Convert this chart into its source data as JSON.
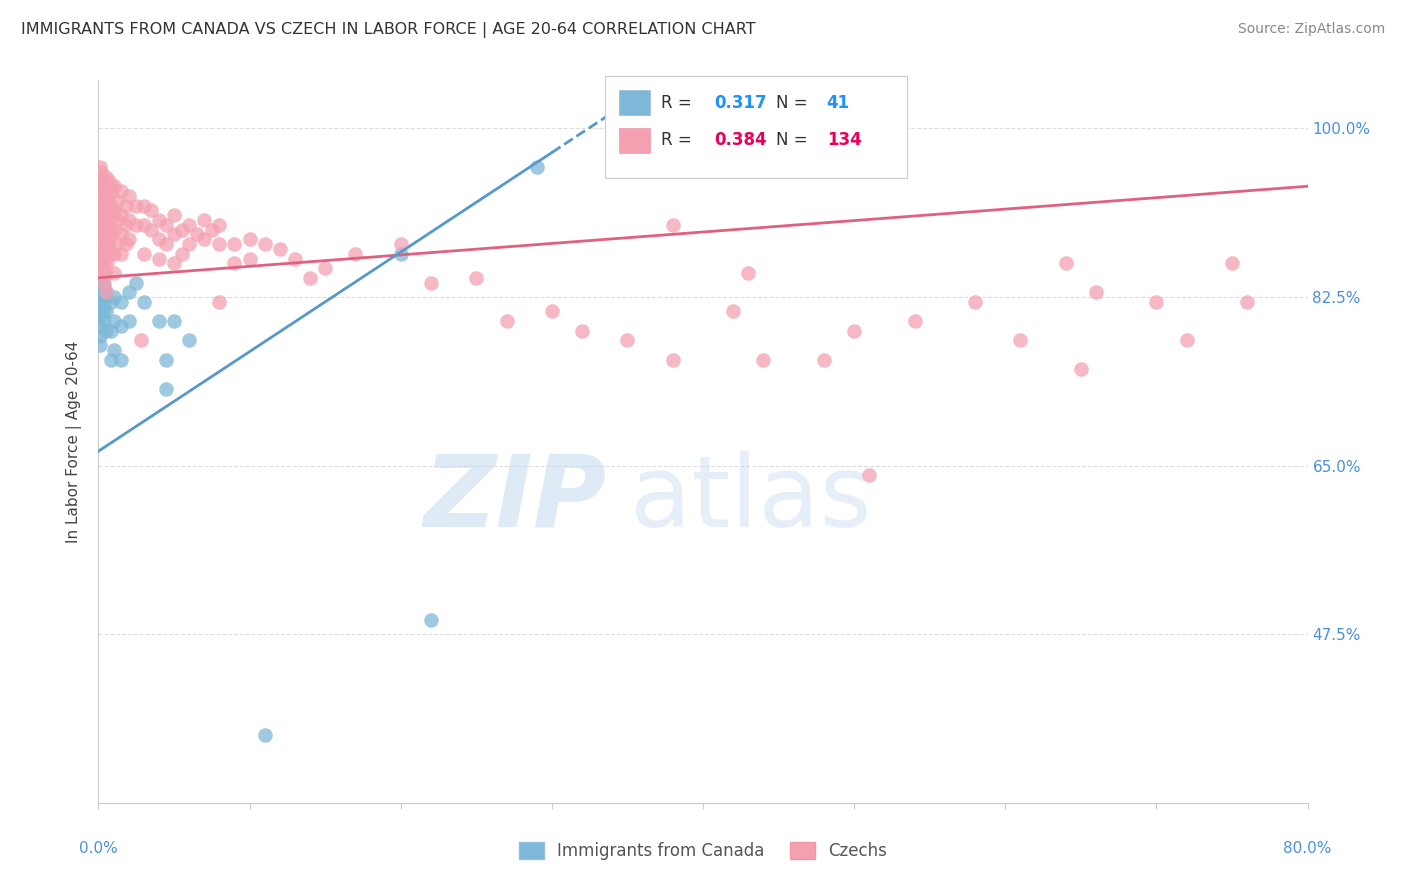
{
  "title": "IMMIGRANTS FROM CANADA VS CZECH IN LABOR FORCE | AGE 20-64 CORRELATION CHART",
  "source": "Source: ZipAtlas.com",
  "ylabel": "In Labor Force | Age 20-64",
  "ytick_labels": [
    "100.0%",
    "82.5%",
    "65.0%",
    "47.5%"
  ],
  "ytick_values": [
    1.0,
    0.825,
    0.65,
    0.475
  ],
  "xmin": 0.0,
  "xmax": 0.8,
  "ymin": 0.3,
  "ymax": 1.05,
  "canada_color": "#7EB8D8",
  "czech_color": "#F4A0B0",
  "canada_R": 0.317,
  "canada_N": 41,
  "czech_R": 0.384,
  "czech_N": 134,
  "watermark_zip": "ZIP",
  "watermark_atlas": "atlas",
  "background_color": "#FFFFFF",
  "grid_color": "#DDDDDD",
  "canada_line_color": "#5599CC",
  "czech_line_color": "#E06080",
  "canada_scatter": [
    [
      0.001,
      0.835
    ],
    [
      0.001,
      0.825
    ],
    [
      0.001,
      0.815
    ],
    [
      0.001,
      0.805
    ],
    [
      0.001,
      0.795
    ],
    [
      0.001,
      0.785
    ],
    [
      0.001,
      0.775
    ],
    [
      0.002,
      0.83
    ],
    [
      0.002,
      0.82
    ],
    [
      0.002,
      0.81
    ],
    [
      0.003,
      0.84
    ],
    [
      0.003,
      0.825
    ],
    [
      0.003,
      0.81
    ],
    [
      0.004,
      0.835
    ],
    [
      0.004,
      0.82
    ],
    [
      0.004,
      0.8
    ],
    [
      0.005,
      0.83
    ],
    [
      0.005,
      0.81
    ],
    [
      0.005,
      0.79
    ],
    [
      0.008,
      0.82
    ],
    [
      0.008,
      0.79
    ],
    [
      0.008,
      0.76
    ],
    [
      0.01,
      0.825
    ],
    [
      0.01,
      0.8
    ],
    [
      0.01,
      0.77
    ],
    [
      0.015,
      0.82
    ],
    [
      0.015,
      0.795
    ],
    [
      0.015,
      0.76
    ],
    [
      0.02,
      0.83
    ],
    [
      0.02,
      0.8
    ],
    [
      0.025,
      0.84
    ],
    [
      0.03,
      0.82
    ],
    [
      0.04,
      0.8
    ],
    [
      0.045,
      0.76
    ],
    [
      0.045,
      0.73
    ],
    [
      0.05,
      0.8
    ],
    [
      0.06,
      0.78
    ],
    [
      0.11,
      0.37
    ],
    [
      0.2,
      0.87
    ],
    [
      0.22,
      0.49
    ],
    [
      0.29,
      0.96
    ]
  ],
  "czech_scatter": [
    [
      0.001,
      0.96
    ],
    [
      0.001,
      0.95
    ],
    [
      0.001,
      0.94
    ],
    [
      0.001,
      0.93
    ],
    [
      0.001,
      0.92
    ],
    [
      0.001,
      0.91
    ],
    [
      0.001,
      0.9
    ],
    [
      0.001,
      0.89
    ],
    [
      0.001,
      0.88
    ],
    [
      0.001,
      0.87
    ],
    [
      0.001,
      0.86
    ],
    [
      0.001,
      0.855
    ],
    [
      0.002,
      0.955
    ],
    [
      0.002,
      0.935
    ],
    [
      0.002,
      0.915
    ],
    [
      0.002,
      0.895
    ],
    [
      0.002,
      0.875
    ],
    [
      0.002,
      0.86
    ],
    [
      0.003,
      0.945
    ],
    [
      0.003,
      0.925
    ],
    [
      0.003,
      0.905
    ],
    [
      0.003,
      0.89
    ],
    [
      0.003,
      0.87
    ],
    [
      0.003,
      0.85
    ],
    [
      0.004,
      0.94
    ],
    [
      0.004,
      0.92
    ],
    [
      0.004,
      0.9
    ],
    [
      0.004,
      0.88
    ],
    [
      0.004,
      0.86
    ],
    [
      0.004,
      0.84
    ],
    [
      0.005,
      0.95
    ],
    [
      0.005,
      0.93
    ],
    [
      0.005,
      0.91
    ],
    [
      0.005,
      0.89
    ],
    [
      0.005,
      0.87
    ],
    [
      0.005,
      0.85
    ],
    [
      0.005,
      0.83
    ],
    [
      0.006,
      0.94
    ],
    [
      0.006,
      0.92
    ],
    [
      0.006,
      0.9
    ],
    [
      0.006,
      0.88
    ],
    [
      0.006,
      0.86
    ],
    [
      0.007,
      0.945
    ],
    [
      0.007,
      0.925
    ],
    [
      0.007,
      0.905
    ],
    [
      0.007,
      0.88
    ],
    [
      0.008,
      0.94
    ],
    [
      0.008,
      0.915
    ],
    [
      0.008,
      0.895
    ],
    [
      0.008,
      0.87
    ],
    [
      0.009,
      0.935
    ],
    [
      0.009,
      0.91
    ],
    [
      0.009,
      0.89
    ],
    [
      0.01,
      0.94
    ],
    [
      0.01,
      0.915
    ],
    [
      0.01,
      0.895
    ],
    [
      0.01,
      0.87
    ],
    [
      0.01,
      0.85
    ],
    [
      0.012,
      0.925
    ],
    [
      0.012,
      0.905
    ],
    [
      0.012,
      0.88
    ],
    [
      0.015,
      0.935
    ],
    [
      0.015,
      0.91
    ],
    [
      0.015,
      0.89
    ],
    [
      0.015,
      0.87
    ],
    [
      0.018,
      0.92
    ],
    [
      0.018,
      0.9
    ],
    [
      0.018,
      0.88
    ],
    [
      0.02,
      0.93
    ],
    [
      0.02,
      0.905
    ],
    [
      0.02,
      0.885
    ],
    [
      0.025,
      0.92
    ],
    [
      0.025,
      0.9
    ],
    [
      0.028,
      0.78
    ],
    [
      0.03,
      0.92
    ],
    [
      0.03,
      0.9
    ],
    [
      0.03,
      0.87
    ],
    [
      0.035,
      0.915
    ],
    [
      0.035,
      0.895
    ],
    [
      0.04,
      0.905
    ],
    [
      0.04,
      0.885
    ],
    [
      0.04,
      0.865
    ],
    [
      0.045,
      0.9
    ],
    [
      0.045,
      0.88
    ],
    [
      0.05,
      0.91
    ],
    [
      0.05,
      0.89
    ],
    [
      0.05,
      0.86
    ],
    [
      0.055,
      0.895
    ],
    [
      0.055,
      0.87
    ],
    [
      0.06,
      0.9
    ],
    [
      0.06,
      0.88
    ],
    [
      0.065,
      0.89
    ],
    [
      0.07,
      0.905
    ],
    [
      0.07,
      0.885
    ],
    [
      0.075,
      0.895
    ],
    [
      0.08,
      0.9
    ],
    [
      0.08,
      0.88
    ],
    [
      0.08,
      0.82
    ],
    [
      0.09,
      0.88
    ],
    [
      0.09,
      0.86
    ],
    [
      0.1,
      0.885
    ],
    [
      0.1,
      0.865
    ],
    [
      0.11,
      0.88
    ],
    [
      0.12,
      0.875
    ],
    [
      0.13,
      0.865
    ],
    [
      0.14,
      0.845
    ],
    [
      0.15,
      0.855
    ],
    [
      0.17,
      0.87
    ],
    [
      0.2,
      0.88
    ],
    [
      0.22,
      0.84
    ],
    [
      0.25,
      0.845
    ],
    [
      0.27,
      0.8
    ],
    [
      0.3,
      0.81
    ],
    [
      0.32,
      0.79
    ],
    [
      0.35,
      0.78
    ],
    [
      0.38,
      0.76
    ],
    [
      0.38,
      0.9
    ],
    [
      0.42,
      0.81
    ],
    [
      0.43,
      0.85
    ],
    [
      0.44,
      0.76
    ],
    [
      0.48,
      0.76
    ],
    [
      0.5,
      0.79
    ],
    [
      0.51,
      0.64
    ],
    [
      0.54,
      0.8
    ],
    [
      0.58,
      0.82
    ],
    [
      0.61,
      0.78
    ],
    [
      0.64,
      0.86
    ],
    [
      0.65,
      0.75
    ],
    [
      0.66,
      0.83
    ],
    [
      0.7,
      0.82
    ],
    [
      0.72,
      0.78
    ],
    [
      0.75,
      0.86
    ],
    [
      0.76,
      0.82
    ]
  ]
}
